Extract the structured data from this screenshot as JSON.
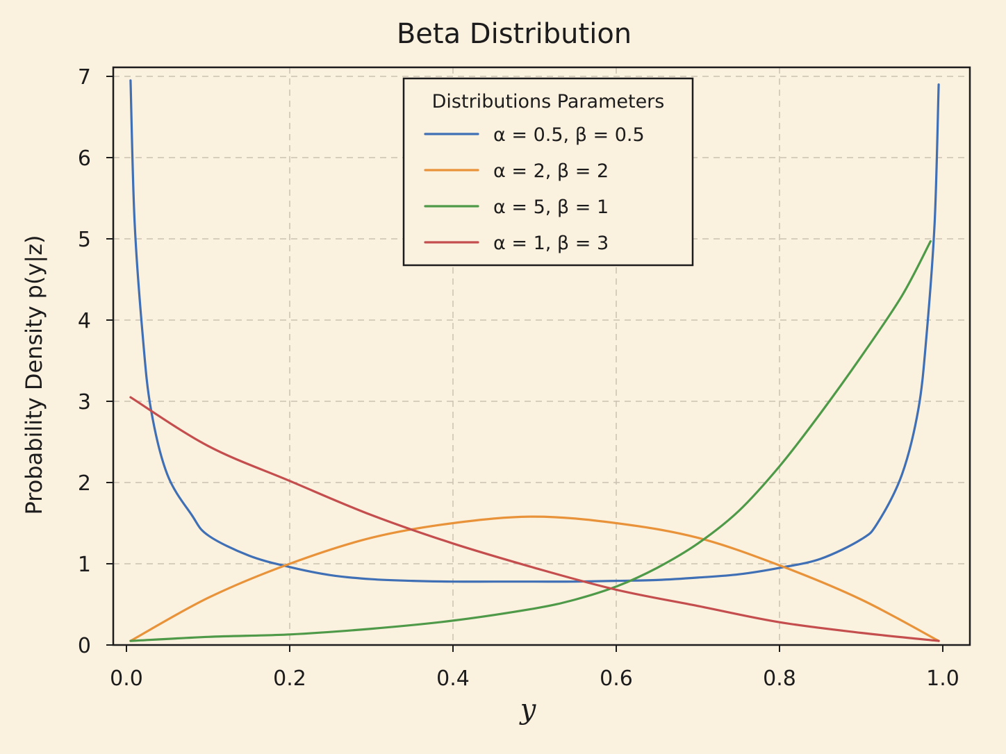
{
  "chart_data": {
    "type": "line",
    "title": "Beta Distribution",
    "xlabel": "y",
    "ylabel": "Probability Density p(y|z)",
    "xlim": [
      0.0,
      1.0
    ],
    "ylim": [
      0,
      7
    ],
    "x_ticks": [
      "0.0",
      "0.2",
      "0.4",
      "0.6",
      "0.8",
      "1.0"
    ],
    "y_ticks": [
      "0",
      "1",
      "2",
      "3",
      "4",
      "5",
      "6",
      "7"
    ],
    "grid": true,
    "grid_style": "dashed",
    "legend": {
      "title": "Distributions Parameters",
      "placement": "top-center"
    },
    "series": [
      {
        "name": "α = 0.5, β = 0.5",
        "color": "#3f6fb5",
        "x": [
          0.005,
          0.01,
          0.02,
          0.03,
          0.05,
          0.08,
          0.1,
          0.15,
          0.2,
          0.25,
          0.3,
          0.35,
          0.4,
          0.45,
          0.5,
          0.55,
          0.6,
          0.65,
          0.7,
          0.75,
          0.8,
          0.85,
          0.9,
          0.92,
          0.95,
          0.97,
          0.98,
          0.99,
          0.995
        ],
        "y": [
          6.95,
          5.2,
          3.8,
          2.9,
          2.1,
          1.6,
          1.35,
          1.1,
          0.96,
          0.86,
          0.81,
          0.79,
          0.78,
          0.78,
          0.78,
          0.78,
          0.79,
          0.8,
          0.83,
          0.87,
          0.95,
          1.06,
          1.3,
          1.5,
          2.1,
          2.9,
          3.8,
          5.2,
          6.9
        ]
      },
      {
        "name": "α = 2, β = 2",
        "color": "#e8933a",
        "x": [
          0.005,
          0.1,
          0.2,
          0.3,
          0.4,
          0.5,
          0.6,
          0.7,
          0.8,
          0.9,
          0.995
        ],
        "y": [
          0.05,
          0.58,
          1.0,
          1.32,
          1.5,
          1.58,
          1.5,
          1.32,
          0.98,
          0.56,
          0.05
        ]
      },
      {
        "name": "α = 5, β = 1",
        "color": "#4e9a48",
        "x": [
          0.005,
          0.1,
          0.2,
          0.3,
          0.4,
          0.5,
          0.55,
          0.6,
          0.65,
          0.7,
          0.75,
          0.8,
          0.85,
          0.9,
          0.95,
          0.985
        ],
        "y": [
          0.05,
          0.1,
          0.13,
          0.2,
          0.3,
          0.45,
          0.56,
          0.72,
          0.95,
          1.25,
          1.65,
          2.2,
          2.85,
          3.55,
          4.3,
          4.97
        ]
      },
      {
        "name": "α = 1, β = 3",
        "color": "#c44e4e",
        "x": [
          0.005,
          0.1,
          0.2,
          0.3,
          0.4,
          0.5,
          0.6,
          0.7,
          0.8,
          0.9,
          0.995
        ],
        "y": [
          3.05,
          2.45,
          2.02,
          1.6,
          1.25,
          0.95,
          0.68,
          0.48,
          0.28,
          0.15,
          0.05
        ]
      }
    ]
  }
}
